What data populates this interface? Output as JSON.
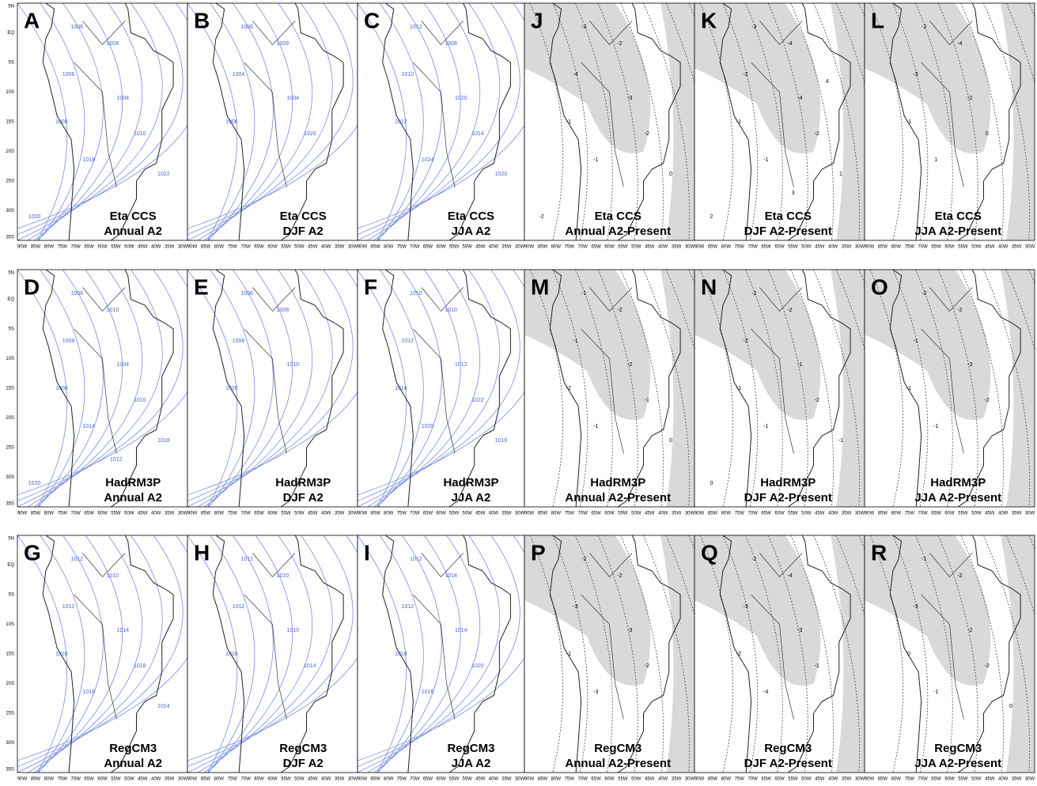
{
  "lat_ticks": [
    "5N",
    "EQ",
    "5S",
    "10S",
    "15S",
    "20S",
    "25S",
    "30S",
    "35S"
  ],
  "lon_ticks": [
    "90W",
    "85W",
    "80W",
    "75W",
    "70W",
    "65W",
    "60W",
    "55W",
    "50W",
    "45W",
    "40W",
    "35W",
    "30W"
  ],
  "panels": [
    {
      "letter": "A",
      "caption": [
        "Eta CCS",
        "Annual A2"
      ],
      "contour_labels": [
        "1006",
        "1008",
        "1006",
        "1004",
        "1008",
        "1010",
        "1018",
        "1022",
        "1020"
      ]
    },
    {
      "letter": "B",
      "caption": [
        "Eta CCS",
        "DJF A2"
      ],
      "contour_labels": [
        "1006",
        "1008",
        "1004",
        "1004",
        "1006",
        "1020"
      ]
    },
    {
      "letter": "C",
      "caption": [
        "Eta CCS",
        "JJA A2"
      ],
      "contour_labels": [
        "1012",
        "1008",
        "1010",
        "1020",
        "1012",
        "1014",
        "1024",
        "1020"
      ]
    },
    {
      "letter": "J",
      "caption": [
        "Eta CCS",
        "Annual A2-Present"
      ],
      "contour_labels": [
        "-3",
        "-2",
        "-4",
        "-3",
        "-1",
        "-2",
        "-1",
        "0",
        "-2"
      ]
    },
    {
      "letter": "K",
      "caption": [
        "Eta CCS",
        "DJF A2-Present"
      ],
      "contour_labels": [
        "-3",
        "-4",
        "-2",
        "-4",
        "-1",
        "-2",
        "-1",
        "1",
        "2",
        "3",
        "4"
      ]
    },
    {
      "letter": "L",
      "caption": [
        "Eta CCS",
        "JJA A2-Present"
      ],
      "contour_labels": [
        "-2",
        "-4",
        "-3",
        "-2",
        "-1",
        "0",
        "1"
      ]
    },
    {
      "letter": "D",
      "caption": [
        "HadRM3P",
        "Annual A2"
      ],
      "contour_labels": [
        "1008",
        "1010",
        "1008",
        "1004",
        "1006",
        "1010",
        "1014",
        "1018",
        "1020",
        "1012"
      ]
    },
    {
      "letter": "E",
      "caption": [
        "HadRM3P",
        "DJF A2"
      ],
      "contour_labels": [
        "1006",
        "1008",
        "1008",
        "1010",
        "1020"
      ]
    },
    {
      "letter": "F",
      "caption": [
        "HadRM3P",
        "JJA A2"
      ],
      "contour_labels": [
        "1010",
        "1010",
        "1012",
        "1012",
        "1014",
        "1022",
        "1020",
        "1016"
      ]
    },
    {
      "letter": "M",
      "caption": [
        "HadRM3P",
        "Annual A2-Present"
      ],
      "contour_labels": [
        "-1",
        "-2",
        "-1",
        "-2",
        "-2",
        "-1",
        "-1",
        "0"
      ]
    },
    {
      "letter": "N",
      "caption": [
        "HadRM3P",
        "DJF A2-Present"
      ],
      "contour_labels": [
        "-2",
        "-2",
        "-2",
        "-1",
        "-1",
        "-2",
        "-1",
        "-1",
        "0"
      ]
    },
    {
      "letter": "O",
      "caption": [
        "HadRM3P",
        "JJA A2-Present"
      ],
      "contour_labels": [
        "-2",
        "-2",
        "-1",
        "-3",
        "-1",
        "-2",
        "-1"
      ]
    },
    {
      "letter": "G",
      "caption": [
        "RegCM3",
        "Annual A2"
      ],
      "contour_labels": [
        "1012",
        "1010",
        "1012",
        "1014",
        "1016",
        "1018",
        "1018",
        "1014"
      ]
    },
    {
      "letter": "H",
      "caption": [
        "RegCM3",
        "DJF A2"
      ],
      "contour_labels": [
        "1012",
        "1010",
        "1012",
        "1010",
        "1016",
        "1014"
      ]
    },
    {
      "letter": "I",
      "caption": [
        "RegCM3",
        "JJA A2"
      ],
      "contour_labels": [
        "1012",
        "1014",
        "1012",
        "1014",
        "1018",
        "1020",
        "1016"
      ]
    },
    {
      "letter": "P",
      "caption": [
        "RegCM3",
        "Annual A2-Present"
      ],
      "contour_labels": [
        "-2",
        "-2",
        "-3",
        "-3",
        "-1",
        "-2",
        "-3"
      ]
    },
    {
      "letter": "Q",
      "caption": [
        "RegCM3",
        "DJF A2-Present"
      ],
      "contour_labels": [
        "-2",
        "-4",
        "-3",
        "-3",
        "-2",
        "-1",
        "-4"
      ]
    },
    {
      "letter": "R",
      "caption": [
        "RegCM3",
        "JJA A2-Present"
      ],
      "contour_labels": [
        "-1",
        "-2",
        "-3",
        "-2",
        "0",
        "-2",
        "-1",
        "0"
      ]
    }
  ]
}
